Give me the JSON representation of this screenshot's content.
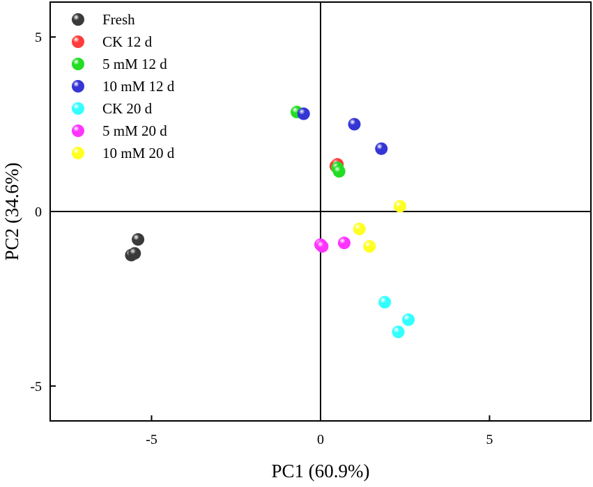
{
  "chart_data": {
    "type": "scatter",
    "title": "",
    "xlabel": "PC1 (60.9%)",
    "ylabel": "PC2 (34.6%)",
    "xlim": [
      -8,
      8
    ],
    "ylim": [
      -6,
      6
    ],
    "xticks": [
      -5,
      0,
      5
    ],
    "yticks": [
      -5,
      0,
      5
    ],
    "xtick_labels": [
      "-5",
      "0",
      "5"
    ],
    "ytick_labels": [
      "-5",
      "0",
      "5"
    ],
    "reference_lines": {
      "x": 0,
      "y": 0
    },
    "grid": false,
    "legend_position": "top-left",
    "series": [
      {
        "name": "Fresh",
        "color": "#3a3a3a",
        "points": [
          [
            -5.4,
            -0.8
          ],
          [
            -5.6,
            -1.25
          ],
          [
            -5.5,
            -1.2
          ]
        ]
      },
      {
        "name": "CK 12 d",
        "color": "#ff3b3b",
        "points": [
          [
            0.45,
            1.3
          ],
          [
            0.5,
            1.35
          ]
        ]
      },
      {
        "name": "5 mM 12 d",
        "color": "#22dd22",
        "points": [
          [
            -0.7,
            2.85
          ],
          [
            0.5,
            1.25
          ],
          [
            0.55,
            1.15
          ]
        ]
      },
      {
        "name": "10 mM 12 d",
        "color": "#3535d6",
        "points": [
          [
            -0.5,
            2.8
          ],
          [
            1.0,
            2.5
          ],
          [
            1.8,
            1.8
          ]
        ]
      },
      {
        "name": "CK 20 d",
        "color": "#33ffff",
        "points": [
          [
            1.9,
            -2.6
          ],
          [
            2.6,
            -3.1
          ],
          [
            2.3,
            -3.45
          ]
        ]
      },
      {
        "name": "5 mM 20 d",
        "color": "#ff33ff",
        "points": [
          [
            0.0,
            -0.95
          ],
          [
            0.05,
            -1.0
          ],
          [
            0.7,
            -0.9
          ]
        ]
      },
      {
        "name": "10 mM 20 d",
        "color": "#ffff22",
        "points": [
          [
            2.35,
            0.15
          ],
          [
            1.15,
            -0.5
          ],
          [
            1.45,
            -1.0
          ]
        ]
      }
    ]
  }
}
